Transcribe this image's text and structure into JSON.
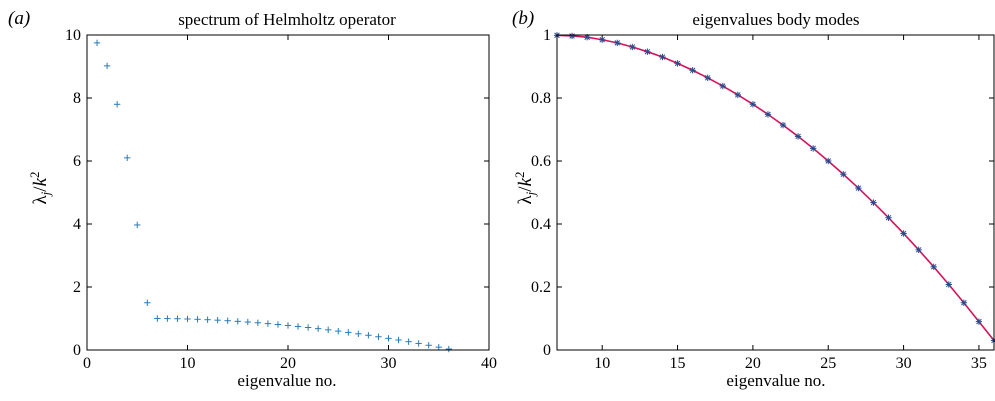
{
  "chart_data": [
    {
      "type": "scatter",
      "panel_label": "(a)",
      "title": "spectrum of Helmholtz operator",
      "xlabel": "eigenvalue no.",
      "ylabel": "λ_j/k^2",
      "xlim": [
        0,
        40
      ],
      "ylim": [
        0,
        10
      ],
      "xticks": [
        0,
        10,
        20,
        30,
        40
      ],
      "yticks": [
        0,
        2,
        4,
        6,
        8,
        10
      ],
      "grid": false,
      "legend": "none",
      "series": [
        {
          "marker": "plus",
          "color": "#2a7ab8",
          "x": [
            1,
            2,
            3,
            4,
            5,
            6,
            7,
            8,
            9,
            10,
            11,
            12,
            13,
            14,
            15,
            16,
            17,
            18,
            19,
            20,
            21,
            22,
            23,
            24,
            25,
            26,
            27,
            28,
            29,
            30,
            31,
            32,
            33,
            34,
            35,
            36
          ],
          "y": [
            9.75,
            9.02,
            7.8,
            6.1,
            3.97,
            1.5,
            0.999,
            0.997,
            0.993,
            0.985,
            0.975,
            0.962,
            0.947,
            0.93,
            0.91,
            0.888,
            0.864,
            0.838,
            0.81,
            0.78,
            0.748,
            0.714,
            0.678,
            0.64,
            0.6,
            0.558,
            0.514,
            0.468,
            0.42,
            0.37,
            0.318,
            0.264,
            0.208,
            0.15,
            0.09,
            0.03
          ]
        }
      ]
    },
    {
      "type": "line",
      "panel_label": "(b)",
      "title": "eigenvalues body modes",
      "xlabel": "eigenvalue no.",
      "ylabel": "λ_j/k^2",
      "xlim": [
        7,
        36
      ],
      "ylim": [
        0,
        1
      ],
      "xticks": [
        10,
        15,
        20,
        25,
        30,
        35
      ],
      "yticks": [
        0,
        0.2,
        0.4,
        0.6,
        0.8,
        1
      ],
      "ytick_labels": [
        "0",
        "0.2",
        "0.4",
        "0.6",
        "0.8",
        "1"
      ],
      "grid": false,
      "legend": "none",
      "series": [
        {
          "style": "line",
          "color": "#d4145a",
          "x": [
            7,
            8,
            9,
            10,
            11,
            12,
            13,
            14,
            15,
            16,
            17,
            18,
            19,
            20,
            21,
            22,
            23,
            24,
            25,
            26,
            27,
            28,
            29,
            30,
            31,
            32,
            33,
            34,
            35,
            36
          ],
          "y": [
            0.999,
            0.997,
            0.993,
            0.985,
            0.975,
            0.962,
            0.947,
            0.93,
            0.91,
            0.888,
            0.864,
            0.838,
            0.81,
            0.78,
            0.748,
            0.714,
            0.678,
            0.64,
            0.6,
            0.558,
            0.514,
            0.468,
            0.42,
            0.37,
            0.318,
            0.264,
            0.208,
            0.15,
            0.09,
            0.03
          ]
        },
        {
          "style": "markers",
          "marker": "asterisk",
          "color": "#2a4a8c",
          "x": [
            7,
            8,
            9,
            10,
            11,
            12,
            13,
            14,
            15,
            16,
            17,
            18,
            19,
            20,
            21,
            22,
            23,
            24,
            25,
            26,
            27,
            28,
            29,
            30,
            31,
            32,
            33,
            34,
            35,
            36
          ],
          "y": [
            0.999,
            0.997,
            0.993,
            0.985,
            0.975,
            0.962,
            0.947,
            0.93,
            0.91,
            0.888,
            0.864,
            0.838,
            0.81,
            0.78,
            0.748,
            0.714,
            0.678,
            0.64,
            0.6,
            0.558,
            0.514,
            0.468,
            0.42,
            0.37,
            0.318,
            0.264,
            0.208,
            0.15,
            0.09,
            0.03
          ]
        }
      ]
    }
  ]
}
